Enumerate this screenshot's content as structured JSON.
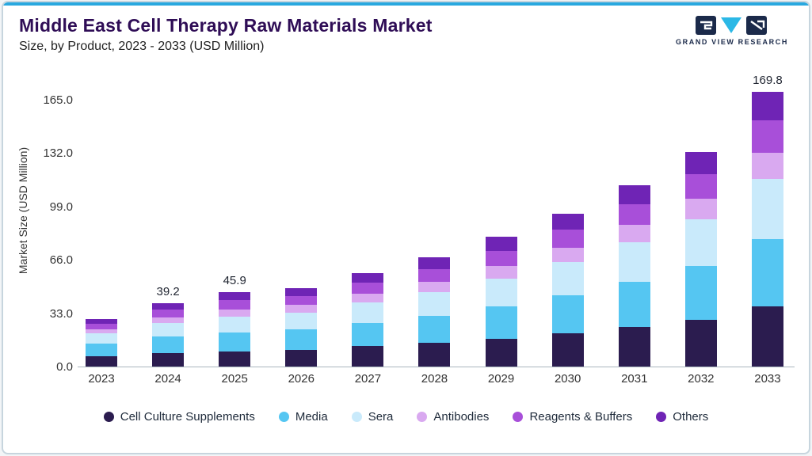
{
  "header": {
    "title": "Middle East Cell Therapy Raw Materials Market",
    "subtitle": "Size, by Product, 2023 - 2033 (USD Million)",
    "logo_text": "GRAND VIEW RESEARCH",
    "logo_colors": {
      "navy": "#1b2a4a",
      "cyan": "#2bb8e6"
    }
  },
  "chart_data": {
    "type": "stacked-bar",
    "title": "Middle East Cell Therapy Raw Materials Market",
    "subtitle": "Size, by Product, 2023 - 2033 (USD Million)",
    "ylabel": "Market Size (USD Million)",
    "ytick_labels": [
      "0.0",
      "33.0",
      "66.0",
      "99.0",
      "132.0",
      "165.0"
    ],
    "ytick_values": [
      0,
      33,
      66,
      99,
      132,
      165
    ],
    "ylim": [
      0,
      182
    ],
    "grid": false,
    "legend_position": "bottom",
    "categories": [
      "2023",
      "2024",
      "2025",
      "2026",
      "2027",
      "2028",
      "2029",
      "2030",
      "2031",
      "2032",
      "2033"
    ],
    "bar_total_labels": {
      "2024": "39.2",
      "2025": "45.9",
      "2033": "169.8"
    },
    "series": [
      {
        "name": "Cell Culture Supplements",
        "color": "#2b1c4f",
        "values": [
          6.6,
          8.5,
          9.5,
          10.5,
          12.5,
          14.5,
          17.0,
          20.5,
          24.5,
          29.0,
          37.0
        ]
      },
      {
        "name": "Media",
        "color": "#55c6f2",
        "values": [
          7.5,
          10.0,
          11.5,
          12.5,
          14.5,
          17.0,
          20.0,
          23.5,
          28.0,
          33.0,
          42.0
        ]
      },
      {
        "name": "Sera",
        "color": "#c9eafb",
        "values": [
          6.3,
          8.5,
          10.0,
          10.5,
          12.5,
          14.5,
          17.5,
          20.5,
          24.5,
          29.0,
          37.0
        ]
      },
      {
        "name": "Antibodies",
        "color": "#d9a9f0",
        "values": [
          2.5,
          3.5,
          4.2,
          4.5,
          5.5,
          6.4,
          7.5,
          9.0,
          10.5,
          12.5,
          16.0
        ]
      },
      {
        "name": "Reagents & Buffers",
        "color": "#a84fd9",
        "values": [
          3.4,
          4.7,
          5.7,
          5.5,
          7.0,
          8.0,
          9.4,
          11.0,
          13.0,
          15.5,
          20.0
        ]
      },
      {
        "name": "Others",
        "color": "#6f24b5",
        "values": [
          2.9,
          4.0,
          5.0,
          5.1,
          5.8,
          7.0,
          9.0,
          10.1,
          11.7,
          13.7,
          17.8
        ]
      }
    ]
  }
}
